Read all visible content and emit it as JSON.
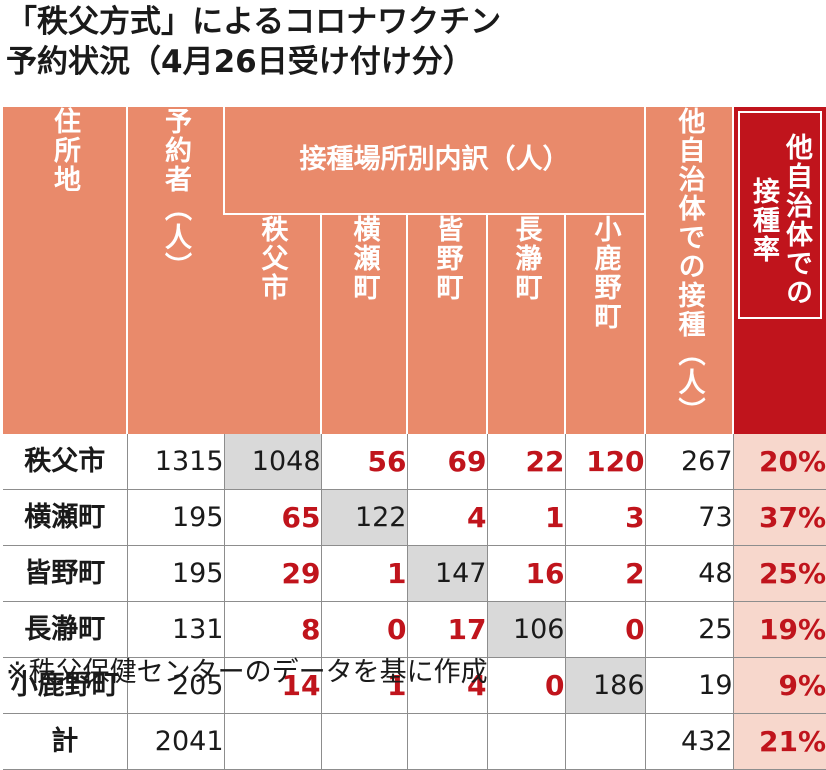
{
  "title": {
    "line1": "「秩父方式」によるコロナワクチン",
    "line2": "予約状況（4月26日受け付け分）"
  },
  "headers": {
    "residence": "住所地",
    "reservations": "予約者（人）",
    "breakdown_group": "接種場所別内訳（人）",
    "locations": [
      "秩父市",
      "横瀬町",
      "皆野町",
      "長瀞町",
      "小鹿野町"
    ],
    "other_municipality": "他自治体での接種（人）",
    "other_rate": "他自治体での接種率"
  },
  "rows": [
    {
      "name": "秩父市",
      "reservations": "1315",
      "b": [
        "1048",
        "56",
        "69",
        "22",
        "120"
      ],
      "other": "267",
      "rate": "20%"
    },
    {
      "name": "横瀬町",
      "reservations": "195",
      "b": [
        "65",
        "122",
        "4",
        "1",
        "3"
      ],
      "other": "73",
      "rate": "37%"
    },
    {
      "name": "皆野町",
      "reservations": "195",
      "b": [
        "29",
        "1",
        "147",
        "16",
        "2"
      ],
      "other": "48",
      "rate": "25%"
    },
    {
      "name": "長瀞町",
      "reservations": "131",
      "b": [
        "8",
        "0",
        "17",
        "106",
        "0"
      ],
      "other": "25",
      "rate": "19%"
    },
    {
      "name": "小鹿野町",
      "reservations": "205",
      "b": [
        "14",
        "1",
        "4",
        "0",
        "186"
      ],
      "other": "19",
      "rate": "9%"
    }
  ],
  "total": {
    "name": "計",
    "reservations": "2041",
    "b": [
      "",
      "",
      "",
      "",
      ""
    ],
    "other": "432",
    "rate": "21%"
  },
  "note": "※秩父保健センターのデータを基に作成",
  "colors": {
    "header": "#e98a6b",
    "accent_red": "#c0141c",
    "rate_bg": "#f7d7cc",
    "self_bg": "#d9d9d9"
  }
}
